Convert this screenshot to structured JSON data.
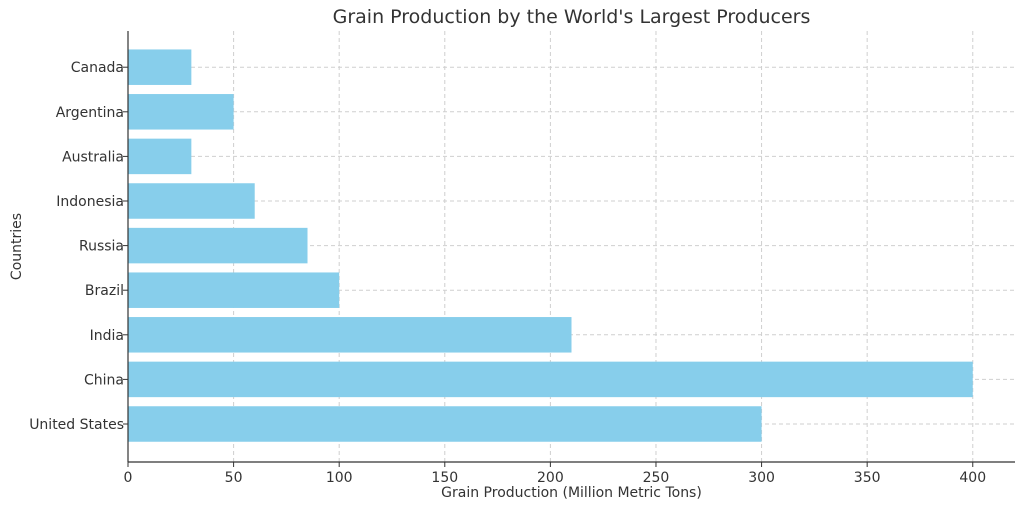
{
  "chart_data": {
    "type": "bar",
    "orientation": "horizontal",
    "title": "Grain Production by the World's Largest Producers",
    "xlabel": "Grain Production (Million Metric Tons)",
    "ylabel": "Countries",
    "categories": [
      "United States",
      "China",
      "India",
      "Brazil",
      "Russia",
      "Indonesia",
      "Australia",
      "Argentina",
      "Canada"
    ],
    "values": [
      300,
      400,
      210,
      100,
      85,
      60,
      30,
      50,
      30
    ],
    "xlim": [
      0,
      420
    ],
    "xticks": [
      0,
      50,
      100,
      150,
      200,
      250,
      300,
      350,
      400
    ],
    "grid": true,
    "bar_color": "#87CEEB"
  }
}
